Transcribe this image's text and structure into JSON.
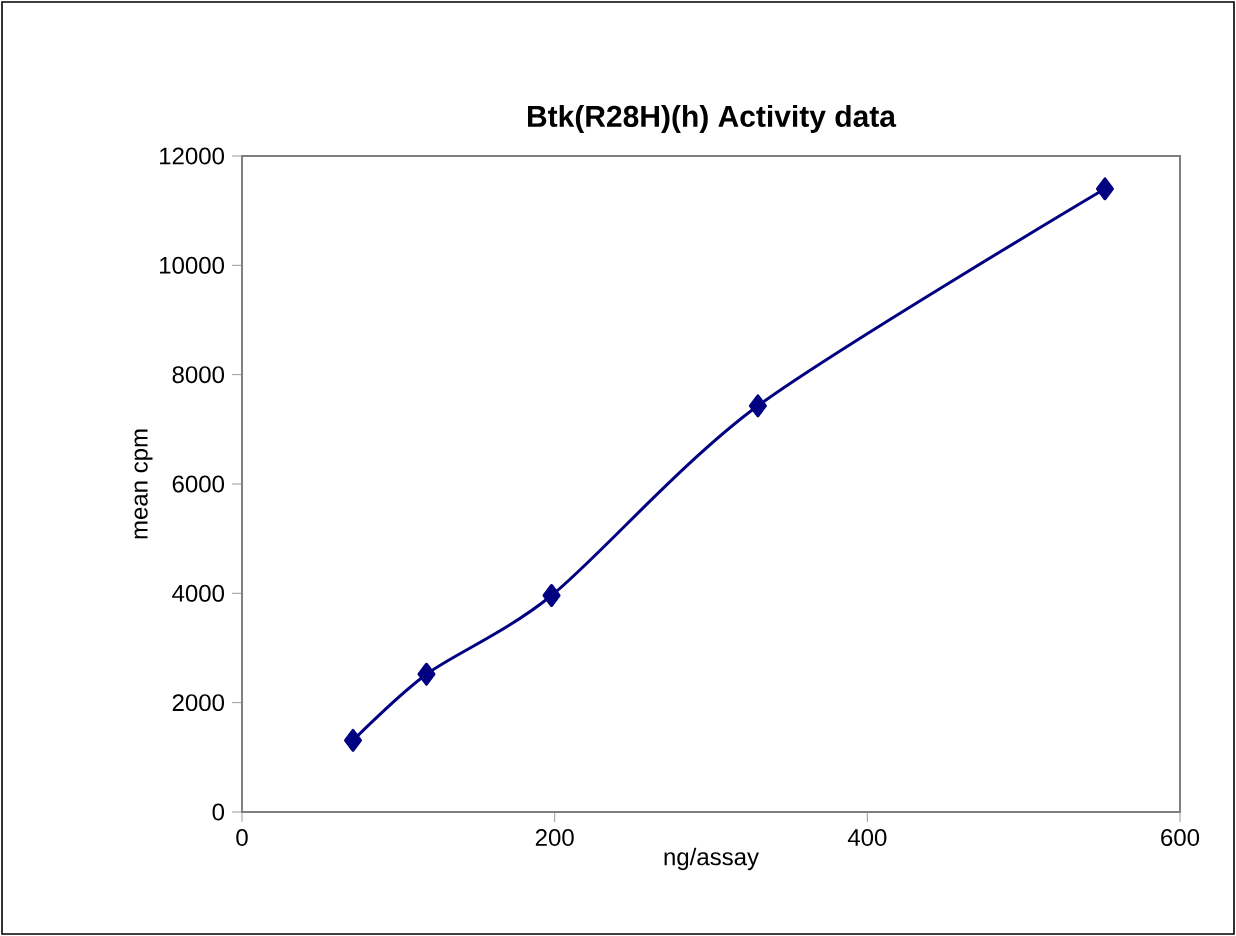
{
  "chart_data": {
    "type": "line",
    "title": "Btk(R28H)(h) Activity data",
    "xlabel": "ng/assay",
    "ylabel": "mean cpm",
    "x": [
      71,
      118,
      198,
      330,
      552
    ],
    "series": [
      {
        "color": "#000080",
        "values": [
          1310,
          2520,
          3960,
          7430,
          11400
        ]
      }
    ],
    "xlim": [
      0,
      600
    ],
    "xticks": [
      0,
      200,
      400,
      600
    ],
    "ylim": [
      0,
      12000
    ],
    "yticks": [
      0,
      2000,
      4000,
      6000,
      8000,
      10000,
      12000
    ],
    "marker": "diamond",
    "line_style": "solid",
    "grid": false
  }
}
